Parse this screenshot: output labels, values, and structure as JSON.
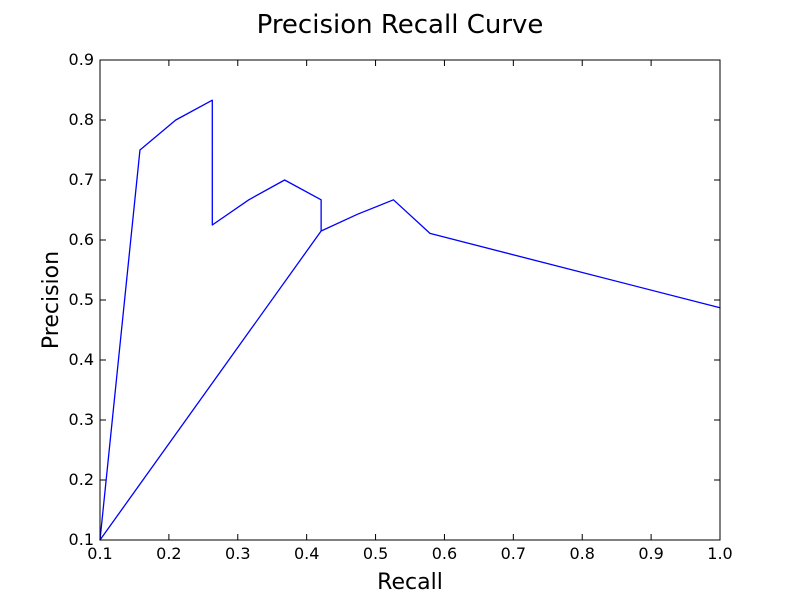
{
  "chart_data": {
    "type": "line",
    "title": "Precision Recall Curve",
    "xlabel": "Recall",
    "ylabel": "Precision",
    "xlim": [
      0.1,
      1.0
    ],
    "ylim": [
      0.1,
      0.9
    ],
    "xticks": [
      "0.1",
      "0.2",
      "0.3",
      "0.4",
      "0.5",
      "0.6",
      "0.7",
      "0.8",
      "0.9",
      "1.0"
    ],
    "yticks": [
      "0.1",
      "0.2",
      "0.3",
      "0.4",
      "0.5",
      "0.6",
      "0.7",
      "0.8",
      "0.9"
    ],
    "grid": false,
    "series": [
      {
        "color": "#0000ff",
        "x": [
          0.1,
          0.158,
          0.1,
          0.158,
          0.21,
          0.263,
          0.263,
          0.316,
          0.368,
          0.421,
          0.421,
          0.1,
          0.421,
          0.474,
          0.526,
          0.579,
          1.0
        ],
        "y": [
          0.1,
          0.75,
          0.1,
          0.75,
          0.8,
          0.833,
          0.625,
          0.667,
          0.7,
          0.667,
          0.615,
          0.1,
          0.615,
          0.643,
          0.667,
          0.611,
          0.487
        ]
      }
    ]
  }
}
